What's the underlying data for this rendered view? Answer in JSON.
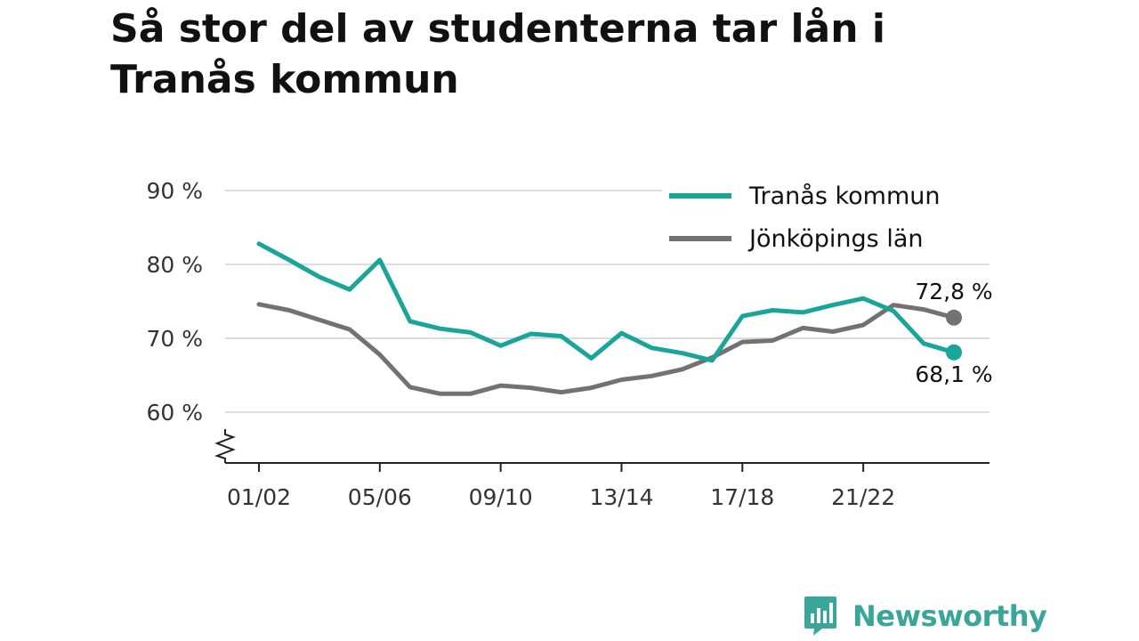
{
  "title": "Så stor del av studenterna tar lån i Tranås kommun",
  "brand": {
    "name": "Newsworthy",
    "icon": "newsworthy-logo-icon"
  },
  "colors": {
    "tranas": "#1aa59a",
    "jonkoping": "#727175",
    "grid": "#dddddd",
    "axis": "#222222"
  },
  "chart_data": {
    "type": "line",
    "title": "Så stor del av studenterna tar lån i Tranås kommun",
    "x": [
      "01/02",
      "02/03",
      "03/04",
      "04/05",
      "05/06",
      "06/07",
      "07/08",
      "08/09",
      "09/10",
      "10/11",
      "11/12",
      "12/13",
      "13/14",
      "14/15",
      "15/16",
      "16/17",
      "17/18",
      "18/19",
      "19/20",
      "20/21",
      "21/22",
      "22/23",
      "23/24",
      "24/25"
    ],
    "xticks": [
      "01/02",
      "05/06",
      "09/10",
      "13/14",
      "17/18",
      "21/22"
    ],
    "series": [
      {
        "name": "Tranås kommun",
        "color": "#1aa59a",
        "values": [
          82.8,
          80.6,
          78.3,
          76.6,
          80.6,
          72.3,
          71.3,
          70.8,
          69.0,
          70.6,
          70.3,
          67.3,
          70.7,
          68.7,
          68.0,
          67.0,
          73.0,
          73.8,
          73.5,
          74.5,
          75.4,
          73.7,
          69.3,
          68.1
        ],
        "end_label": "68,1 %"
      },
      {
        "name": "Jönköpings län",
        "color": "#727175",
        "values": [
          74.6,
          73.8,
          72.5,
          71.2,
          67.8,
          63.4,
          62.5,
          62.5,
          63.6,
          63.3,
          62.7,
          63.3,
          64.4,
          64.9,
          65.8,
          67.4,
          69.5,
          69.7,
          71.4,
          70.9,
          71.8,
          74.5,
          73.9,
          72.8
        ],
        "end_label": "72,8 %"
      }
    ],
    "yticks": [
      {
        "value": 60,
        "label": "60 %"
      },
      {
        "value": 70,
        "label": "70 %"
      },
      {
        "value": 80,
        "label": "80 %"
      },
      {
        "value": 90,
        "label": "90 %"
      }
    ],
    "ylim": [
      54,
      90
    ],
    "grid": true,
    "axis_break": true,
    "legend_position": "top-right"
  }
}
